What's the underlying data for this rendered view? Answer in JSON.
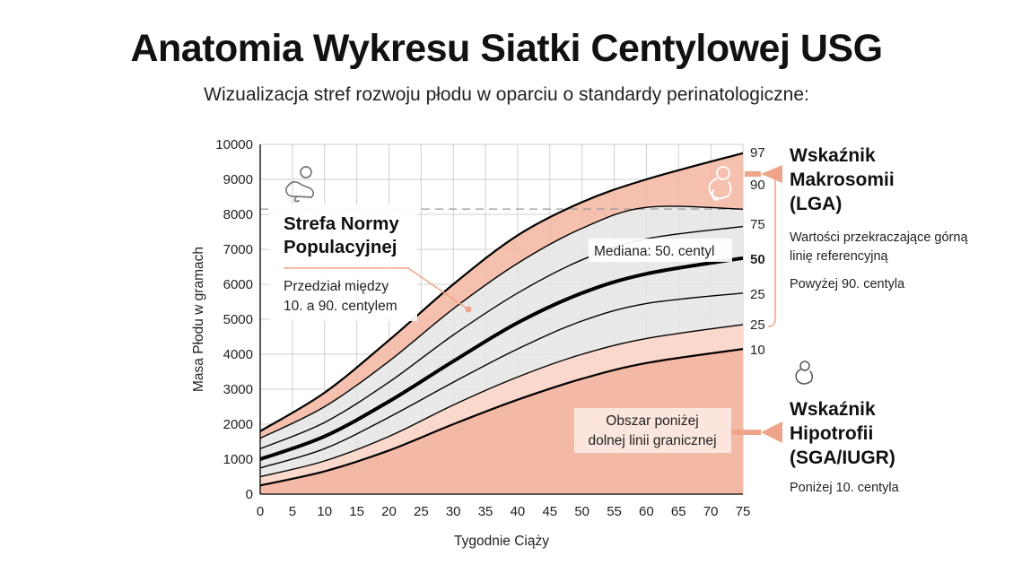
{
  "title": "Anatomia Wykresu Siatki Centylowej USG",
  "subtitle": "Wizualizacja stref rozwoju płodu w oparciu o standardy perinatologiczne:",
  "colors": {
    "salmon": "#f4b9a5",
    "salmon_light": "#fad8cb",
    "grey_band": "#e5e5e5",
    "line": "#000000",
    "grid": "#cfcfcf"
  },
  "chart_data": {
    "type": "line",
    "xlabel": "Tygodnie Ciąży",
    "ylabel": "Masa Płodu w gramach",
    "xlim": [
      0,
      75
    ],
    "ylim": [
      0,
      10000
    ],
    "x_ticks": [
      0,
      5,
      10,
      15,
      20,
      25,
      30,
      35,
      40,
      45,
      50,
      55,
      60,
      65,
      70,
      75
    ],
    "y_ticks": [
      0,
      1000,
      2000,
      3000,
      4000,
      5000,
      6000,
      7000,
      8000,
      9000,
      10000
    ],
    "grid": true,
    "reference_line_y": 8150,
    "series": [
      {
        "name": "97",
        "x": [
          0,
          10,
          20,
          30,
          40,
          50,
          60,
          75
        ],
        "values": [
          1800,
          2900,
          4400,
          6000,
          7400,
          8350,
          9000,
          9750
        ]
      },
      {
        "name": "90",
        "x": [
          0,
          10,
          20,
          30,
          40,
          50,
          60,
          75
        ],
        "values": [
          1600,
          2500,
          3800,
          5300,
          6600,
          7600,
          8200,
          8150
        ]
      },
      {
        "name": "75",
        "x": [
          0,
          10,
          20,
          30,
          40,
          50,
          60,
          75
        ],
        "values": [
          1300,
          2050,
          3200,
          4550,
          5750,
          6700,
          7300,
          7650
        ]
      },
      {
        "name": "50",
        "x": [
          0,
          10,
          20,
          30,
          40,
          50,
          60,
          75
        ],
        "values": [
          1000,
          1650,
          2650,
          3800,
          4900,
          5750,
          6300,
          6750
        ]
      },
      {
        "name": "25",
        "x": [
          0,
          10,
          20,
          30,
          40,
          50,
          60,
          75
        ],
        "values": [
          750,
          1300,
          2200,
          3200,
          4150,
          4950,
          5450,
          5750
        ]
      },
      {
        "name": "25",
        "x": [
          0,
          10,
          20,
          30,
          40,
          50,
          60,
          75
        ],
        "values": [
          500,
          950,
          1650,
          2550,
          3350,
          4000,
          4450,
          4850
        ]
      },
      {
        "name": "10",
        "x": [
          0,
          10,
          20,
          30,
          40,
          50,
          60,
          75
        ],
        "values": [
          250,
          650,
          1250,
          2000,
          2700,
          3300,
          3750,
          4150
        ]
      }
    ],
    "right_labels": [
      "97",
      "90",
      "75",
      "50",
      "25",
      "25",
      "10"
    ],
    "annotations": {
      "norm_title": "Strefa Normy Populacyjnej",
      "norm_text": "Przedział między 10. a 90. centylem",
      "median": "Mediana: 50. centyl",
      "below": "Obszar poniżej dolnej linii granicznej"
    }
  },
  "callouts": {
    "lga_title": "Wskaźnik Makrosomii (LGA)",
    "lga_text": "Wartości przekraczające górną linię referencyjną",
    "lga_text2": "Powyżej 90. centyla",
    "sga_title": "Wskaźnik Hipotrofii (SGA/IUGR)",
    "sga_text": "Poniżej 10. centyla"
  },
  "icons": [
    "mother-baby-icon",
    "fetus-icon",
    "fetus-small-icon"
  ]
}
